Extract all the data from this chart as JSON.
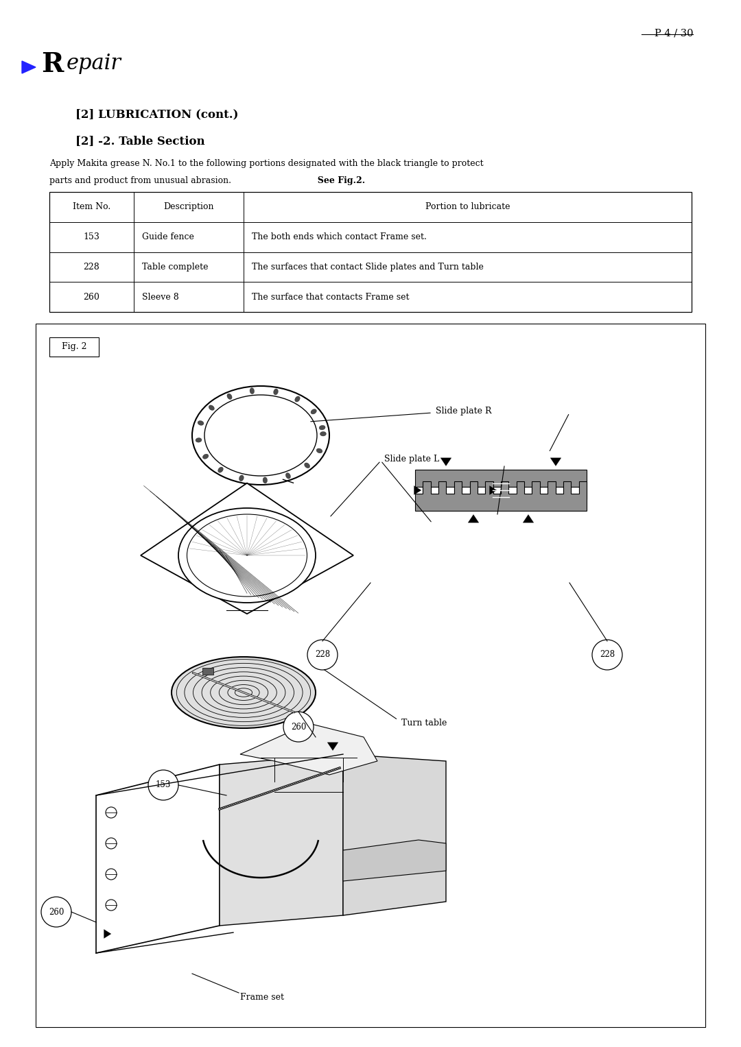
{
  "page_number": "P 4 / 30",
  "section_title_R": "R",
  "section_title_rest": "epair",
  "subsection1": "[2] LUBRICATION (cont.)",
  "subsection2": "[2] -2. Table Section",
  "body_text_line1": "Apply Makita grease N. No.1 to the following portions designated with the black triangle to protect",
  "body_text_line2": "parts and product from unusual abrasion.",
  "body_text_bold": "  See Fig.2.",
  "table_headers": [
    "Item No.",
    "Description",
    "Portion to lubricate"
  ],
  "table_rows": [
    [
      "153",
      "Guide fence",
      "The both ends which contact Frame set."
    ],
    [
      "228",
      "Table complete",
      "The surfaces that contact Slide plates and Turn table"
    ],
    [
      "260",
      "Sleeve 8",
      "The surface that contacts Frame set"
    ]
  ],
  "fig_label": "Fig. 2",
  "bg_color": "#ffffff",
  "text_color": "#000000",
  "blue_color": "#2222ff",
  "gray_color": "#909090",
  "light_gray": "#d0d0d0",
  "page_width": 10.8,
  "page_height": 15.27
}
